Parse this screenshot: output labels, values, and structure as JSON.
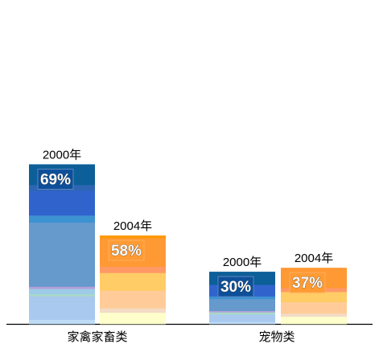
{
  "chart_data": {
    "type": "bar",
    "stacked": true,
    "categories": [
      "家禽家畜类",
      "宠物类"
    ],
    "groups": [
      {
        "category": "家禽家畜类",
        "bars": [
          {
            "year": "2000年",
            "label": "69%",
            "value": 69,
            "label_box_color": "#0d4f99",
            "segments": [
              {
                "value": 4.7,
                "color": "#0c5f98"
              },
              {
                "value": 1.3,
                "color": "#2e66b4"
              },
              {
                "value": 5.6,
                "color": "#3064cc"
              },
              {
                "value": 1.6,
                "color": "#3d92d2"
              },
              {
                "value": 14.5,
                "color": "#6699cc"
              },
              {
                "value": 0.5,
                "color": "#b4a0d8"
              },
              {
                "value": 1.2,
                "color": "#9ecbe8"
              },
              {
                "value": 0.5,
                "color": "#a8d8c8"
              },
              {
                "value": 1.2,
                "color": "#a8c8ee"
              },
              {
                "value": 4.1,
                "color": "#a9c9ef"
              },
              {
                "value": 0.9,
                "color": "#bedcf6"
              }
            ]
          },
          {
            "year": "2004年",
            "label": "58%",
            "value": 58,
            "label_box_color": "#ff9b33",
            "segments": [
              {
                "value": 0.6,
                "color": "#ff9900"
              },
              {
                "value": 6.5,
                "color": "#ff9933"
              },
              {
                "value": 1.4,
                "color": "#ff9966"
              },
              {
                "value": 4.0,
                "color": "#ffcc66"
              },
              {
                "value": 4.0,
                "color": "#ffcc99"
              },
              {
                "value": 1.0,
                "color": "#f3dbc6"
              },
              {
                "value": 2.5,
                "color": "#ffffcc"
              }
            ]
          }
        ]
      },
      {
        "category": "宠物类",
        "bars": [
          {
            "year": "2000年",
            "label": "30%",
            "value": 30,
            "label_box_color": "#0d4f99",
            "segments": [
              {
                "value": 3.0,
                "color": "#0c5f98"
              },
              {
                "value": 2.6,
                "color": "#3064cc"
              },
              {
                "value": 0.6,
                "color": "#3d92d2"
              },
              {
                "value": 2.7,
                "color": "#6699cc"
              },
              {
                "value": 0.3,
                "color": "#b4a0d8"
              },
              {
                "value": 0.5,
                "color": "#a8d8c8"
              },
              {
                "value": 1.7,
                "color": "#a9c9ef"
              },
              {
                "value": 0.4,
                "color": "#bedcf6"
              }
            ]
          },
          {
            "year": "2004年",
            "label": "37%",
            "value": 37,
            "label_box_color": "#ff9b33",
            "segments": [
              {
                "value": 4.6,
                "color": "#ff9933"
              },
              {
                "value": 0.9,
                "color": "#ff9966"
              },
              {
                "value": 2.3,
                "color": "#ffcc66"
              },
              {
                "value": 2.6,
                "color": "#ffcc99"
              },
              {
                "value": 0.7,
                "color": "#f3dbc6"
              },
              {
                "value": 1.6,
                "color": "#ffffcc"
              }
            ]
          }
        ]
      }
    ],
    "ylim": [
      0,
      100
    ],
    "grid": false,
    "legend": "none",
    "title": "",
    "xlabel": "",
    "ylabel": ""
  }
}
